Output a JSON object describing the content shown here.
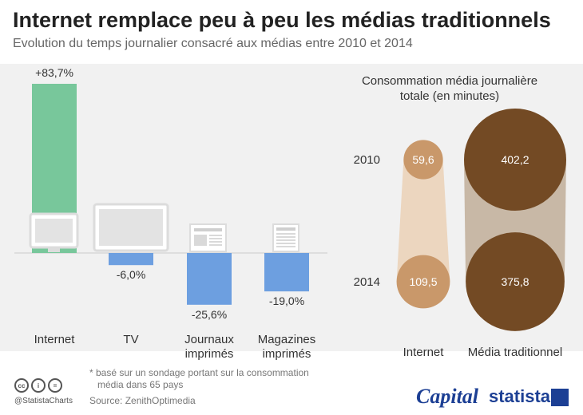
{
  "title": "Internet remplace peu à peu les médias traditionnels",
  "subtitle": "Evolution du temps journalier consacré aux médias entre 2010 et 2014",
  "footnote_line1": "* basé sur un sondage portant sur la consommation",
  "footnote_line2": "média dans 65 pays",
  "source": "Source: ZenithOptimedia",
  "handle": "@StatistaCharts",
  "brand_capital": "Capital",
  "brand_statista": "statista",
  "colors": {
    "positive_bar": "#78c79b",
    "negative_bar": "#6d9fe0",
    "internet_bubble": "#c9986a",
    "internet_band": "#ecd6bf",
    "trad_bubble": "#734a24",
    "trad_band": "#c8b8a6",
    "panel": "#f1f1f1"
  },
  "chart_data": [
    {
      "type": "bar",
      "categories": [
        "Internet",
        "TV",
        "Journaux imprimés",
        "Magazines imprimés"
      ],
      "category_lines": [
        [
          "Internet"
        ],
        [
          "TV"
        ],
        [
          "Journaux",
          "imprimés"
        ],
        [
          "Magazines",
          "imprimés"
        ]
      ],
      "values": [
        83.7,
        -6.0,
        -25.6,
        -19.0
      ],
      "labels": [
        "+83,7%",
        "-6,0%",
        "-25,6%",
        "-19,0%"
      ],
      "icons": [
        "monitor-icon",
        "tv-icon",
        "newspaper-icon",
        "magazine-icon"
      ],
      "ylim": [
        -30,
        90
      ]
    },
    {
      "type": "bubble",
      "title": "Consommation média journalière totale (en minutes)",
      "title_lines": [
        "Consommation média journalière",
        "totale (en minutes)"
      ],
      "years": [
        "2010",
        "2014"
      ],
      "series": [
        {
          "name": "Internet",
          "values": [
            59.6,
            109.5
          ],
          "labels": [
            "59,6",
            "109,5"
          ]
        },
        {
          "name": "Média traditionnel",
          "values": [
            402.2,
            375.8
          ],
          "labels": [
            "402,2",
            "375,8"
          ]
        }
      ]
    }
  ]
}
